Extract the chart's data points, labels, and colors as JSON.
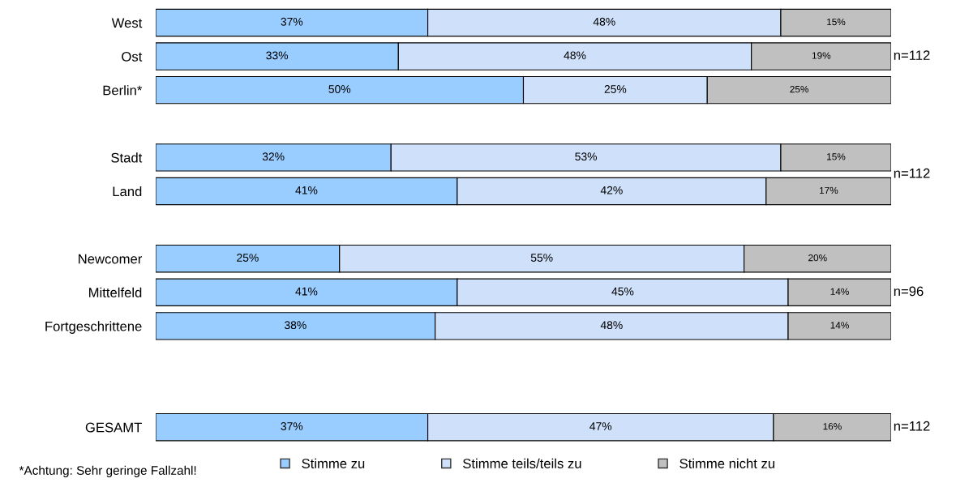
{
  "chart_data": {
    "type": "bar",
    "orientation": "horizontal",
    "stacked": true,
    "legend": "bottom",
    "grid": false,
    "categories": [
      "West",
      "Ost",
      "Berlin*",
      null,
      "Stadt",
      "Land",
      null,
      "Newcomer",
      "Mittelfeld",
      "Fortgeschrittene",
      null,
      null,
      "GESAMT"
    ],
    "series": [
      {
        "name": "Stimme zu",
        "color": "#99ccff",
        "values": [
          37,
          33,
          50,
          null,
          32,
          41,
          null,
          25,
          41,
          38,
          null,
          null,
          37
        ],
        "value_labels": [
          "37%",
          "33%",
          "50%",
          null,
          "32%",
          "41%",
          null,
          "25%",
          "41%",
          "38%",
          null,
          null,
          "37%"
        ]
      },
      {
        "name": "Stimme teils/teils zu",
        "color": "#cfe0fa",
        "values": [
          48,
          48,
          25,
          null,
          53,
          42,
          null,
          55,
          45,
          48,
          null,
          null,
          47
        ],
        "value_labels": [
          "48%",
          "48%",
          "25%",
          null,
          "53%",
          "42%",
          null,
          "55%",
          "45%",
          "48%",
          null,
          null,
          "47%"
        ]
      },
      {
        "name": "Stimme nicht zu",
        "color": "#c0c0c0",
        "values": [
          15,
          19,
          25,
          null,
          15,
          17,
          null,
          20,
          14,
          14,
          null,
          null,
          16
        ],
        "value_labels": [
          "15%",
          "19%",
          "25%",
          null,
          "15%",
          "17%",
          null,
          "20%",
          "14%",
          "14%",
          null,
          null,
          "16%"
        ]
      }
    ],
    "annotations": [
      "n=112",
      "n=112",
      "n=96",
      "n=112",
      "*Achtung: Sehr geringe Fallzahl!"
    ]
  }
}
